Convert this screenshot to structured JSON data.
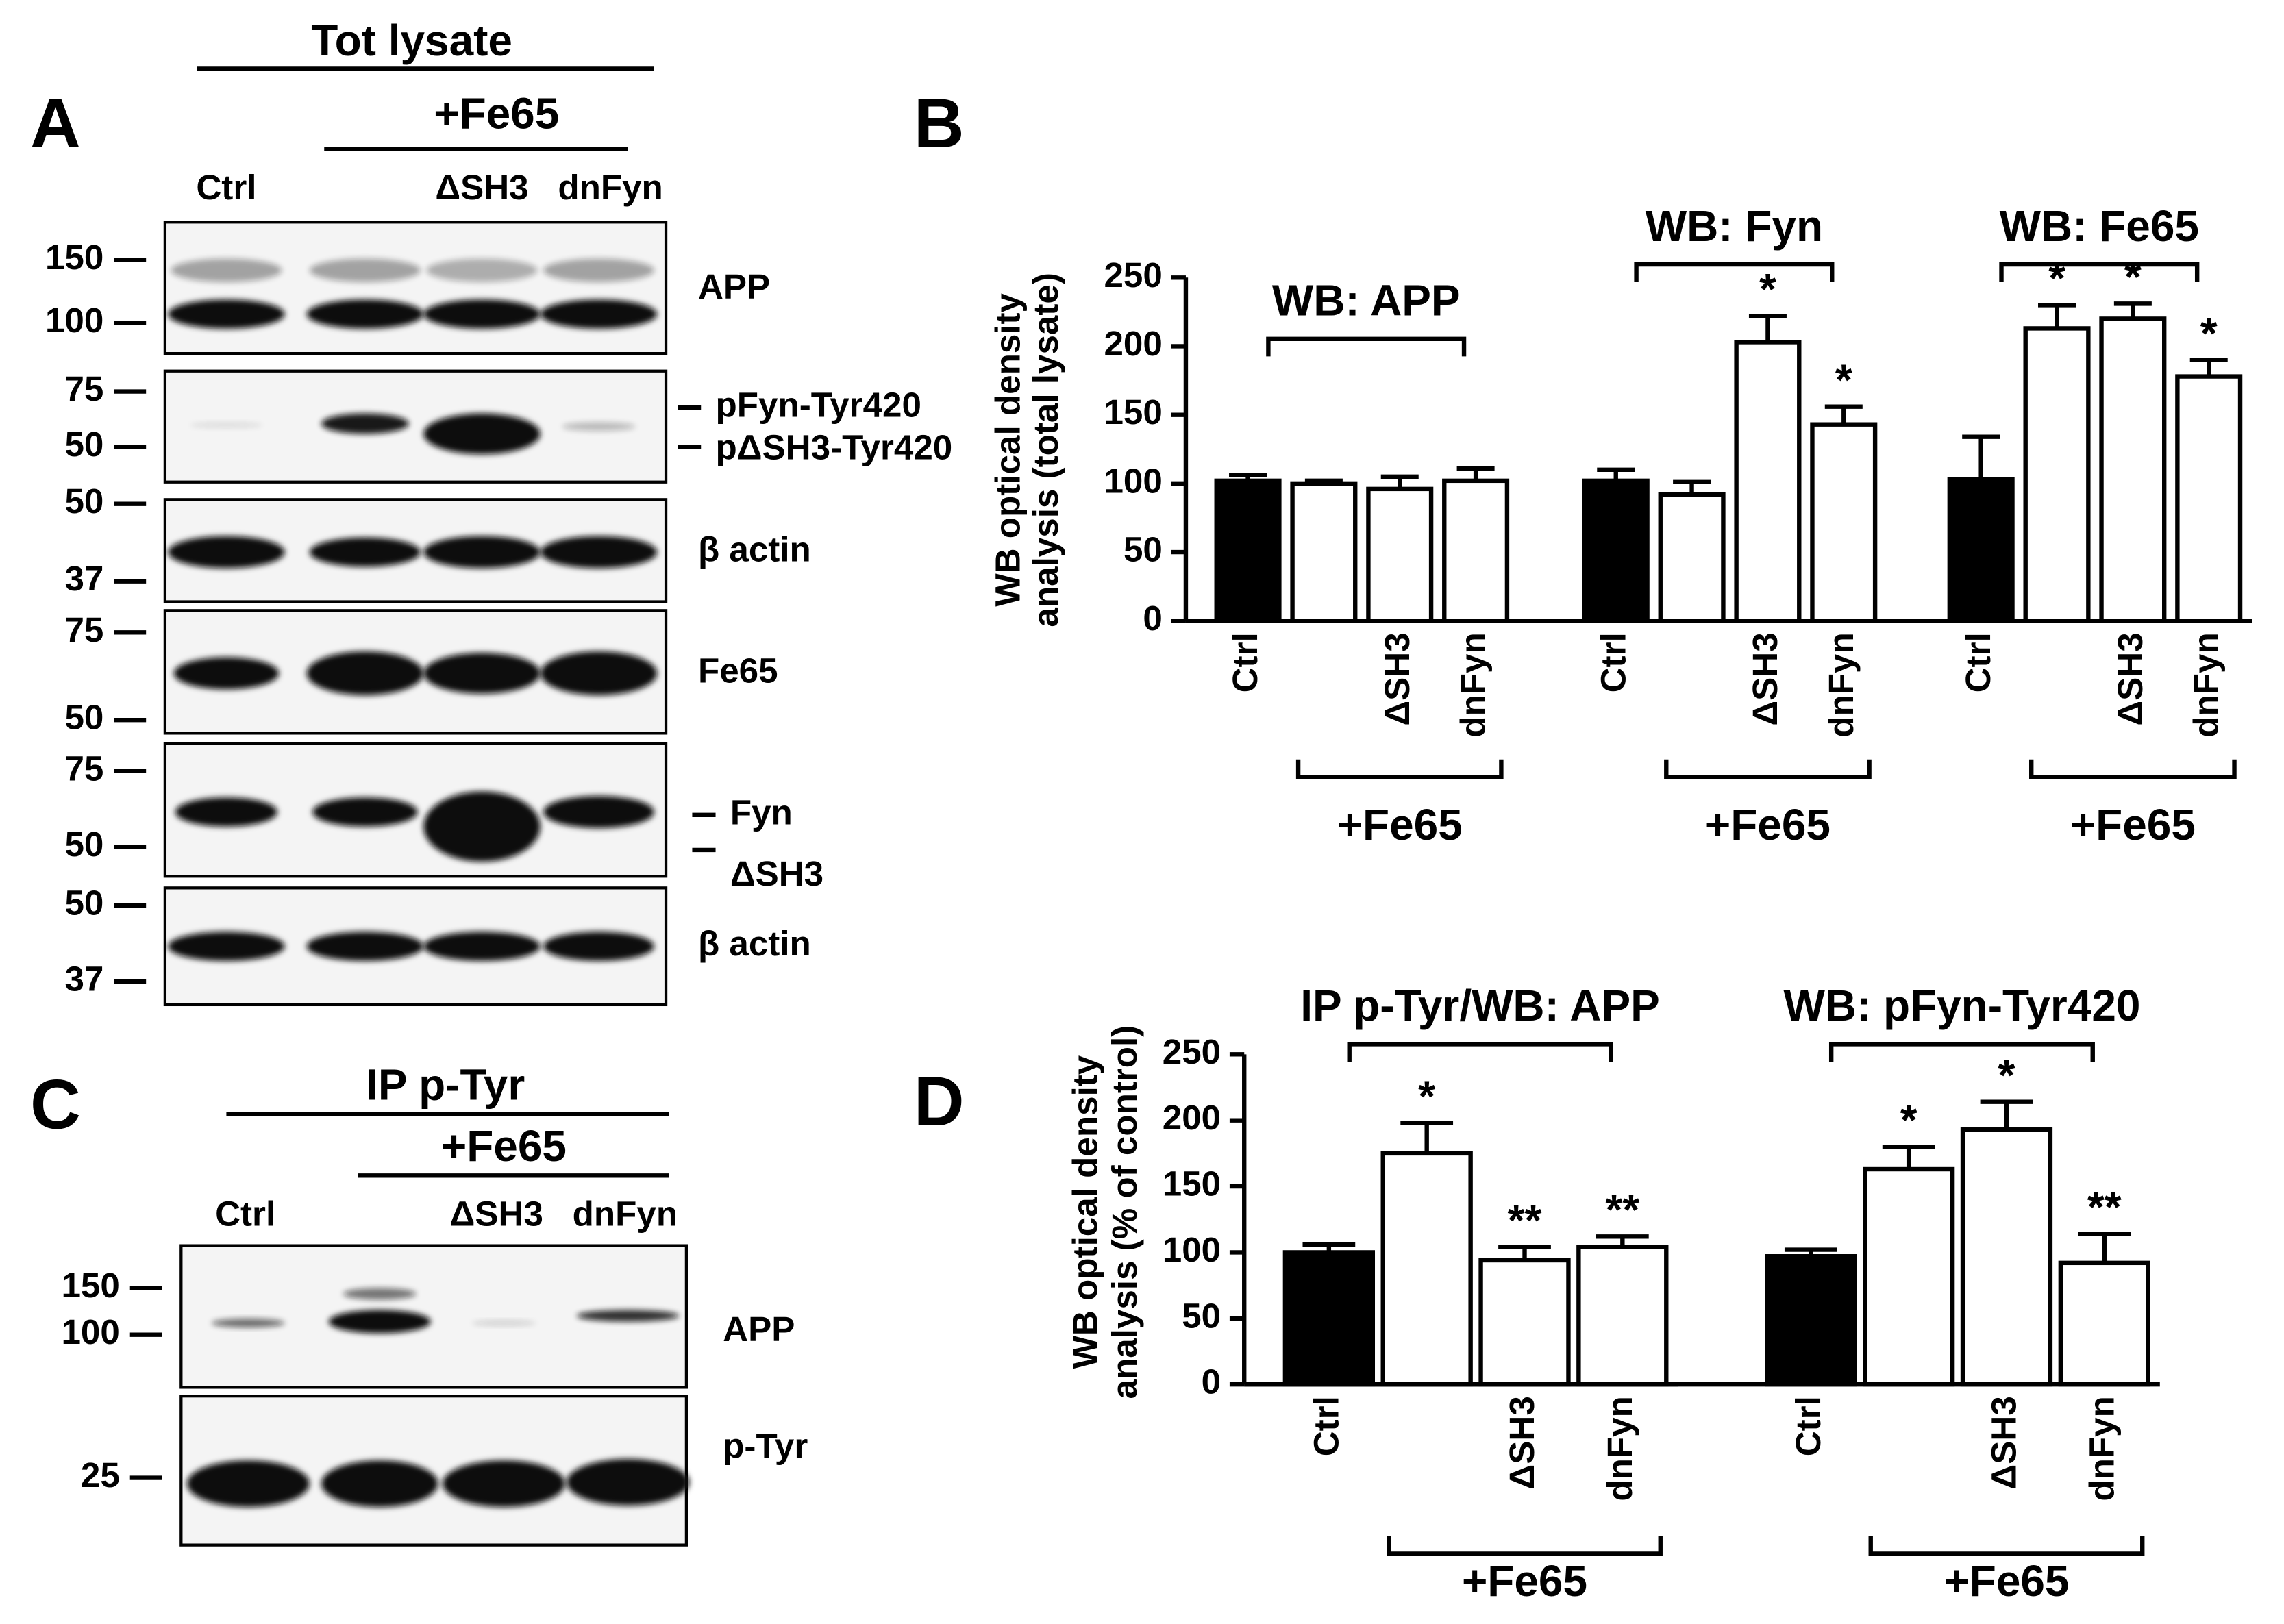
{
  "panel_labels": [
    "A",
    "B",
    "C",
    "D"
  ],
  "panel_a": {
    "header": "Tot lysate",
    "group": "+Fe65",
    "lanes": [
      "Ctrl",
      "ΔSH3",
      "dnFyn"
    ],
    "blots": [
      {
        "markers": [
          150,
          100
        ],
        "labels": [
          "APP"
        ]
      },
      {
        "markers": [
          75,
          50
        ],
        "labels": [
          "pFyn-Tyr420",
          "pΔSH3-Tyr420"
        ]
      },
      {
        "markers": [
          50,
          37
        ],
        "labels": [
          "β actin"
        ]
      },
      {
        "markers": [
          75,
          50
        ],
        "labels": [
          "Fe65"
        ]
      },
      {
        "markers": [
          75,
          50
        ],
        "labels": [
          "Fyn",
          "ΔSH3"
        ]
      },
      {
        "markers": [
          50,
          37
        ],
        "labels": [
          "β actin"
        ]
      }
    ]
  },
  "panel_c": {
    "header": "IP p-Tyr",
    "group": "+Fe65",
    "lanes": [
      "Ctrl",
      "ΔSH3",
      "dnFyn"
    ],
    "blots": [
      {
        "markers": [
          150,
          100
        ],
        "labels": [
          "APP"
        ]
      },
      {
        "markers": [
          25
        ],
        "labels": [
          "p-Tyr"
        ]
      }
    ]
  },
  "chart_data": [
    {
      "type": "bar",
      "ylabel": [
        "WB optical density",
        "analysis (total lysate)"
      ],
      "ylim": [
        0,
        250
      ],
      "yticks": [
        0,
        50,
        100,
        150,
        200,
        250
      ],
      "colors": [
        "#000000",
        "#ffffff",
        "#ffffff",
        "#ffffff"
      ],
      "groups": [
        {
          "title": "WB: APP",
          "bracket_label": "+Fe65",
          "categories": [
            "Ctrl",
            null,
            "ΔSH3",
            "dnFyn"
          ],
          "values": [
            102,
            100,
            96,
            102
          ],
          "errors": [
            4,
            2,
            9,
            9
          ],
          "annotations": [
            null,
            null,
            null,
            null
          ]
        },
        {
          "title": "WB: Fyn",
          "bracket_label": "+Fe65",
          "categories": [
            "Ctrl",
            null,
            "ΔSH3",
            "dnFyn"
          ],
          "values": [
            102,
            92,
            203,
            143
          ],
          "errors": [
            8,
            9,
            19,
            13
          ],
          "annotations": [
            null,
            null,
            "*",
            "*"
          ]
        },
        {
          "title": "WB: Fe65",
          "bracket_label": "+Fe65",
          "categories": [
            "Ctrl",
            null,
            "ΔSH3",
            "dnFyn"
          ],
          "values": [
            103,
            213,
            220,
            178
          ],
          "errors": [
            31,
            17,
            11,
            12
          ],
          "annotations": [
            null,
            "*",
            "*",
            "*"
          ]
        }
      ]
    },
    {
      "type": "bar",
      "ylabel": [
        "WB optical density",
        "analysis (% of control)"
      ],
      "ylim": [
        0,
        250
      ],
      "yticks": [
        0,
        50,
        100,
        150,
        200,
        250
      ],
      "colors": [
        "#000000",
        "#ffffff",
        "#ffffff",
        "#ffffff"
      ],
      "groups": [
        {
          "title": "IP p-Tyr/WB: APP",
          "bracket_label": "+Fe65",
          "categories": [
            "Ctrl",
            null,
            "ΔSH3",
            "dnFyn"
          ],
          "values": [
            100,
            175,
            94,
            104
          ],
          "errors": [
            6,
            23,
            10,
            8
          ],
          "annotations": [
            null,
            "*",
            "**",
            "**"
          ]
        },
        {
          "title": "WB: pFyn-Tyr420",
          "bracket_label": "+Fe65",
          "categories": [
            "Ctrl",
            null,
            "ΔSH3",
            "dnFyn"
          ],
          "values": [
            97,
            163,
            193,
            92
          ],
          "errors": [
            5,
            17,
            21,
            22
          ],
          "annotations": [
            null,
            "*",
            "*",
            "**"
          ]
        }
      ]
    }
  ]
}
